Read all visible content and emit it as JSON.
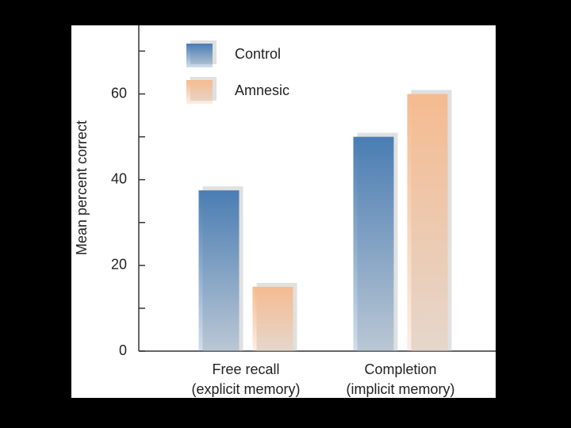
{
  "chart_data": {
    "type": "bar",
    "y_label": "Mean percent correct",
    "categories": [
      "Free recall",
      "Completion"
    ],
    "category_notes": [
      "(explicit memory)",
      "(implicit memory)"
    ],
    "series": [
      {
        "name": "Control",
        "color": "#4a7db3",
        "values": [
          37.5,
          50
        ]
      },
      {
        "name": "Amnesic",
        "color": "#f5bb90",
        "values": [
          15,
          60
        ]
      }
    ],
    "ylim": [
      0,
      76
    ],
    "yticks": [
      0,
      20,
      40,
      60
    ],
    "minor_yticks": [
      10,
      30,
      50,
      70
    ]
  }
}
